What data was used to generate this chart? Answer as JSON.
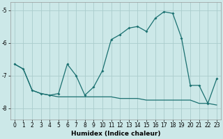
{
  "xlabel": "Humidex (Indice chaleur)",
  "bg_color": "#cce8e8",
  "grid_color": "#aacccc",
  "line_color": "#1a7070",
  "line1_x": [
    0,
    1,
    2,
    3,
    4,
    5,
    6,
    7,
    8,
    9,
    10,
    11,
    12,
    13,
    14,
    15,
    16,
    17,
    18,
    19,
    20,
    21,
    22,
    23
  ],
  "line1_y": [
    -6.65,
    -6.8,
    -7.45,
    -7.55,
    -7.6,
    -7.55,
    -6.65,
    -7.0,
    -7.6,
    -7.35,
    -6.85,
    -5.9,
    -5.75,
    -5.55,
    -5.5,
    -5.65,
    -5.25,
    -5.05,
    -5.1,
    -5.85,
    -7.3,
    -7.3,
    -7.85,
    -7.1
  ],
  "line2_x": [
    0,
    1,
    2,
    3,
    4,
    5,
    6,
    7,
    8,
    9,
    10,
    11,
    12,
    13,
    14,
    15,
    16,
    17,
    18,
    19,
    20,
    21,
    22,
    23
  ],
  "line2_y": [
    -6.65,
    -6.8,
    -7.45,
    -7.55,
    -7.6,
    -7.65,
    -7.65,
    -7.65,
    -7.65,
    -7.65,
    -7.65,
    -7.65,
    -7.7,
    -7.7,
    -7.7,
    -7.75,
    -7.75,
    -7.75,
    -7.75,
    -7.75,
    -7.75,
    -7.85,
    -7.85,
    -7.9
  ],
  "xlim": [
    -0.5,
    23.5
  ],
  "ylim": [
    -8.35,
    -4.75
  ],
  "xticks": [
    0,
    1,
    2,
    3,
    4,
    5,
    6,
    7,
    8,
    9,
    10,
    11,
    12,
    13,
    14,
    15,
    16,
    17,
    18,
    19,
    20,
    21,
    22,
    23
  ],
  "yticks": [
    -5,
    -6,
    -7,
    -8
  ],
  "tick_fontsize": 5.5,
  "xlabel_fontsize": 6.5
}
